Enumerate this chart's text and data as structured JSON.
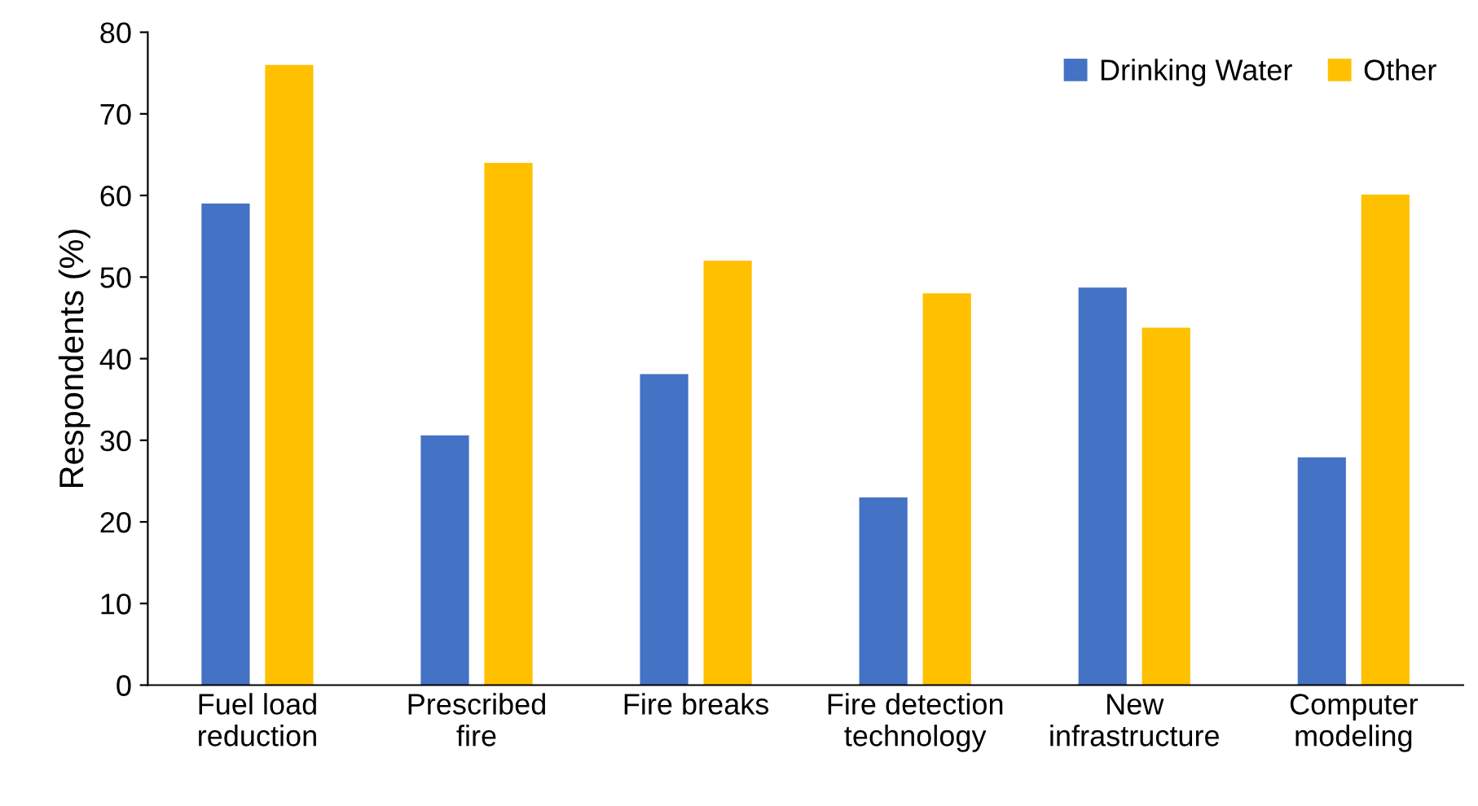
{
  "chart_data": {
    "type": "bar",
    "ylabel": "Respondents (%)",
    "categories": [
      "Fuel load\nreduction",
      "Prescribed\nfire",
      "Fire breaks",
      "Fire detection\ntechnology",
      "New\ninfrastructure",
      "Computer\nmodeling"
    ],
    "series": [
      {
        "name": "Drinking Water",
        "color": "#4472c4",
        "values": [
          59,
          30.6,
          38.1,
          23,
          48.7,
          27.9
        ]
      },
      {
        "name": "Other",
        "color": "#ffc000",
        "values": [
          76,
          64,
          52,
          48,
          43.8,
          60.1
        ]
      }
    ],
    "ylim": [
      0,
      80
    ],
    "yticks": [
      0,
      10,
      20,
      30,
      40,
      50,
      60,
      70,
      80
    ],
    "grid": false,
    "legend": "top right"
  }
}
